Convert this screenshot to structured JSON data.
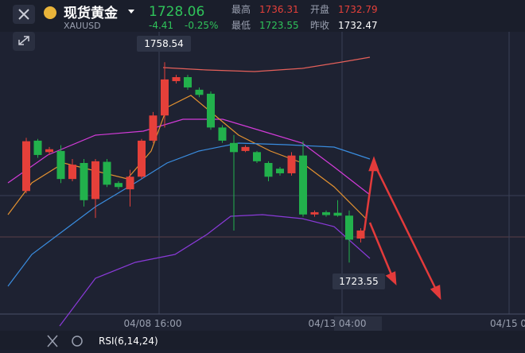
{
  "header": {
    "name": "现货黄金",
    "symbol": "XAUUSD",
    "price": 1728.06,
    "change": -4.41,
    "change_pct": "-0.25%",
    "stats": [
      {
        "label": "最高",
        "value": 1736.31
      },
      {
        "label": "开盘",
        "value": 1732.79
      },
      {
        "label": "最低",
        "value": 1723.55
      },
      {
        "label": "昨收",
        "value": 1732.47
      }
    ]
  },
  "chart_data": {
    "type": "candlestick",
    "ylim": [
      1715.2,
      1766.6
    ],
    "up_color": "#e5403a",
    "down_color": "#22b14c",
    "high_label": 1758.54,
    "low_label": 1723.55,
    "time_labels": [
      "04/08 16:00",
      "04/13 04:00",
      "04/15 0"
    ],
    "candles": [
      {
        "open": 1736.0,
        "high": 1745.3,
        "low": 1735.6,
        "close": 1744.7
      },
      {
        "open": 1744.8,
        "high": 1745.1,
        "low": 1741.8,
        "close": 1742.3
      },
      {
        "open": 1742.8,
        "high": 1743.7,
        "low": 1742.3,
        "close": 1743.3
      },
      {
        "open": 1743.0,
        "high": 1744.0,
        "low": 1737.4,
        "close": 1738.1
      },
      {
        "open": 1738.1,
        "high": 1741.6,
        "low": 1737.7,
        "close": 1740.6
      },
      {
        "open": 1740.9,
        "high": 1741.6,
        "low": 1733.3,
        "close": 1734.4
      },
      {
        "open": 1734.6,
        "high": 1741.6,
        "low": 1731.3,
        "close": 1741.2
      },
      {
        "open": 1741.1,
        "high": 1741.6,
        "low": 1736.7,
        "close": 1737.1
      },
      {
        "open": 1737.4,
        "high": 1737.7,
        "low": 1736.3,
        "close": 1736.7
      },
      {
        "open": 1736.3,
        "high": 1739.7,
        "low": 1733.3,
        "close": 1738.5
      },
      {
        "open": 1738.5,
        "high": 1745.1,
        "low": 1738.1,
        "close": 1744.8
      },
      {
        "open": 1744.8,
        "high": 1749.8,
        "low": 1744.4,
        "close": 1749.2
      },
      {
        "open": 1749.2,
        "high": 1758.5,
        "low": 1747.1,
        "close": 1755.5
      },
      {
        "open": 1755.2,
        "high": 1756.3,
        "low": 1754.8,
        "close": 1755.9
      },
      {
        "open": 1755.9,
        "high": 1756.3,
        "low": 1753.7,
        "close": 1754.1
      },
      {
        "open": 1753.7,
        "high": 1754.1,
        "low": 1752.4,
        "close": 1752.8
      },
      {
        "open": 1753.0,
        "high": 1753.4,
        "low": 1746.7,
        "close": 1747.1
      },
      {
        "open": 1747.1,
        "high": 1747.5,
        "low": 1744.4,
        "close": 1744.8
      },
      {
        "open": 1744.4,
        "high": 1745.8,
        "low": 1729.1,
        "close": 1742.8
      },
      {
        "open": 1743.0,
        "high": 1744.0,
        "low": 1742.8,
        "close": 1743.7
      },
      {
        "open": 1742.8,
        "high": 1743.0,
        "low": 1740.9,
        "close": 1741.2
      },
      {
        "open": 1740.9,
        "high": 1741.2,
        "low": 1737.7,
        "close": 1738.5
      },
      {
        "open": 1739.9,
        "high": 1740.2,
        "low": 1738.7,
        "close": 1739.1
      },
      {
        "open": 1739.1,
        "high": 1742.8,
        "low": 1738.7,
        "close": 1742.2
      },
      {
        "open": 1742.2,
        "high": 1744.7,
        "low": 1731.5,
        "close": 1731.9
      },
      {
        "open": 1731.9,
        "high": 1732.6,
        "low": 1731.5,
        "close": 1732.3
      },
      {
        "open": 1732.3,
        "high": 1732.6,
        "low": 1731.5,
        "close": 1731.8
      },
      {
        "open": 1732.2,
        "high": 1734.4,
        "low": 1731.5,
        "close": 1731.7
      },
      {
        "open": 1731.7,
        "high": 1732.6,
        "low": 1723.5,
        "close": 1727.5
      },
      {
        "open": 1727.7,
        "high": 1729.5,
        "low": 1727.0,
        "close": 1729.1
      }
    ]
  },
  "footer": {
    "indicator": "RSI(6,14,24)"
  }
}
